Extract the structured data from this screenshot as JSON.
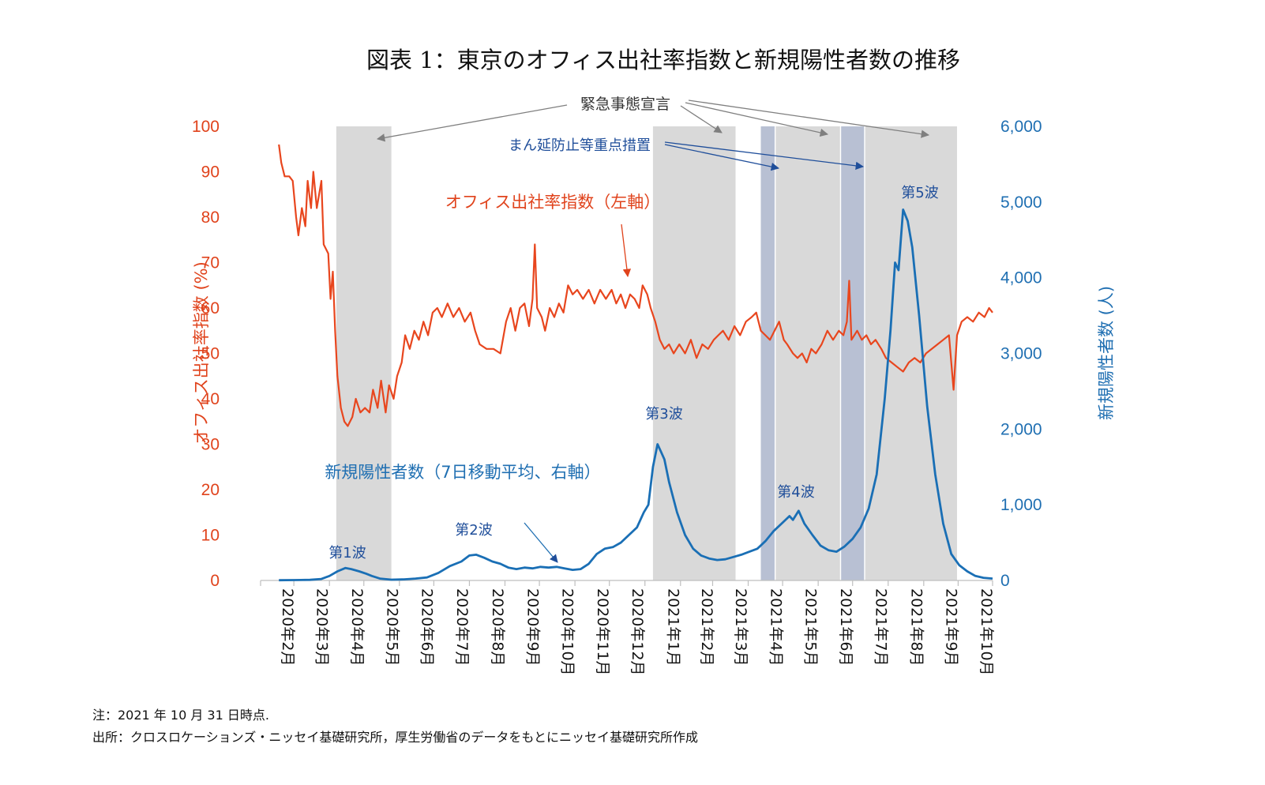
{
  "title": "図表 1：東京のオフィス出社率指数と新規陽性者数の推移",
  "notes": {
    "note": "注：2021 年 10 月 31 日時点.",
    "source": "出所：クロスロケーションズ・ニッセイ基礎研究所，厚生労働省のデータをもとにニッセイ基礎研究所作成"
  },
  "annotations": {
    "emergency": "緊急事態宣言",
    "priority": "まん延防止等重点措置",
    "office_series": "オフィス出社率指数（左軸）",
    "cases_series": "新規陽性者数（7日移動平均、右軸）",
    "waves": [
      "第1波",
      "第2波",
      "第3波",
      "第4波",
      "第5波"
    ]
  },
  "colors": {
    "office": "#e8461e",
    "cases": "#1a6fb5",
    "emergency_band": "#d9d9d9",
    "priority_band": "#b8c0d3"
  },
  "chart_data": {
    "type": "line",
    "x_ticks": [
      "2020年2月",
      "2020年3月",
      "2020年4月",
      "2020年5月",
      "2020年6月",
      "2020年7月",
      "2020年8月",
      "2020年9月",
      "2020年10月",
      "2020年11月",
      "2020年12月",
      "2021年1月",
      "2021年2月",
      "2021年3月",
      "2021年4月",
      "2021年5月",
      "2021年6月",
      "2021年7月",
      "2021年8月",
      "2021年9月",
      "2021年10月"
    ],
    "x_range": [
      "2020-02-01",
      "2021-10-31"
    ],
    "left_axis": {
      "label": "オフィス出社率指数 (%)",
      "ylim": [
        0,
        100
      ],
      "ticks": [
        0,
        10,
        20,
        30,
        40,
        50,
        60,
        70,
        80,
        90,
        100
      ]
    },
    "right_axis": {
      "label": "新規陽性者数 (人)",
      "ylim": [
        0,
        6000
      ],
      "ticks": [
        "0",
        "1,000",
        "2,000",
        "3,000",
        "4,000",
        "5,000",
        "6,000"
      ]
    },
    "emergency_periods": [
      [
        "2020-04-07",
        "2020-05-25"
      ],
      [
        "2021-01-08",
        "2021-03-21"
      ],
      [
        "2021-04-25",
        "2021-06-20"
      ],
      [
        "2021-07-12",
        "2021-09-30"
      ]
    ],
    "priority_periods": [
      [
        "2021-04-12",
        "2021-04-24"
      ],
      [
        "2021-06-21",
        "2021-07-11"
      ]
    ],
    "series": [
      {
        "name": "オフィス出社率指数（左軸）",
        "axis": "left",
        "points": [
          [
            "2020-02-17",
            96
          ],
          [
            "2020-02-19",
            92
          ],
          [
            "2020-02-22",
            89
          ],
          [
            "2020-02-26",
            89
          ],
          [
            "2020-02-29",
            88
          ],
          [
            "2020-03-03",
            80
          ],
          [
            "2020-03-05",
            76
          ],
          [
            "2020-03-08",
            82
          ],
          [
            "2020-03-11",
            78
          ],
          [
            "2020-03-13",
            88
          ],
          [
            "2020-03-16",
            82
          ],
          [
            "2020-03-18",
            90
          ],
          [
            "2020-03-21",
            82
          ],
          [
            "2020-03-25",
            88
          ],
          [
            "2020-03-27",
            74
          ],
          [
            "2020-03-31",
            72
          ],
          [
            "2020-04-02",
            62
          ],
          [
            "2020-04-04",
            68
          ],
          [
            "2020-04-06",
            55
          ],
          [
            "2020-04-08",
            45
          ],
          [
            "2020-04-11",
            38
          ],
          [
            "2020-04-14",
            35
          ],
          [
            "2020-04-17",
            34
          ],
          [
            "2020-04-21",
            36
          ],
          [
            "2020-04-24",
            40
          ],
          [
            "2020-04-28",
            37
          ],
          [
            "2020-05-02",
            38
          ],
          [
            "2020-05-06",
            37
          ],
          [
            "2020-05-09",
            42
          ],
          [
            "2020-05-13",
            38
          ],
          [
            "2020-05-16",
            44
          ],
          [
            "2020-05-20",
            37
          ],
          [
            "2020-05-23",
            43
          ],
          [
            "2020-05-27",
            40
          ],
          [
            "2020-05-30",
            45
          ],
          [
            "2020-06-03",
            48
          ],
          [
            "2020-06-06",
            54
          ],
          [
            "2020-06-10",
            51
          ],
          [
            "2020-06-14",
            55
          ],
          [
            "2020-06-18",
            53
          ],
          [
            "2020-06-22",
            57
          ],
          [
            "2020-06-26",
            54
          ],
          [
            "2020-06-30",
            59
          ],
          [
            "2020-07-04",
            60
          ],
          [
            "2020-07-08",
            58
          ],
          [
            "2020-07-13",
            61
          ],
          [
            "2020-07-18",
            58
          ],
          [
            "2020-07-23",
            60
          ],
          [
            "2020-07-28",
            57
          ],
          [
            "2020-08-02",
            59
          ],
          [
            "2020-08-06",
            55
          ],
          [
            "2020-08-10",
            52
          ],
          [
            "2020-08-16",
            51
          ],
          [
            "2020-08-22",
            51
          ],
          [
            "2020-08-28",
            50
          ],
          [
            "2020-09-02",
            57
          ],
          [
            "2020-09-06",
            60
          ],
          [
            "2020-09-10",
            55
          ],
          [
            "2020-09-14",
            60
          ],
          [
            "2020-09-18",
            61
          ],
          [
            "2020-09-22",
            56
          ],
          [
            "2020-09-25",
            62
          ],
          [
            "2020-09-27",
            74
          ],
          [
            "2020-09-29",
            60
          ],
          [
            "2020-10-03",
            58
          ],
          [
            "2020-10-06",
            55
          ],
          [
            "2020-10-10",
            60
          ],
          [
            "2020-10-14",
            58
          ],
          [
            "2020-10-18",
            61
          ],
          [
            "2020-10-22",
            59
          ],
          [
            "2020-10-26",
            65
          ],
          [
            "2020-10-30",
            63
          ],
          [
            "2020-11-03",
            64
          ],
          [
            "2020-11-08",
            62
          ],
          [
            "2020-11-13",
            64
          ],
          [
            "2020-11-18",
            61
          ],
          [
            "2020-11-23",
            64
          ],
          [
            "2020-11-28",
            62
          ],
          [
            "2020-12-03",
            64
          ],
          [
            "2020-12-07",
            61
          ],
          [
            "2020-12-11",
            63
          ],
          [
            "2020-12-15",
            60
          ],
          [
            "2020-12-19",
            63
          ],
          [
            "2020-12-23",
            62
          ],
          [
            "2020-12-27",
            60
          ],
          [
            "2020-12-30",
            65
          ],
          [
            "2021-01-03",
            63
          ],
          [
            "2021-01-06",
            60
          ],
          [
            "2021-01-10",
            57
          ],
          [
            "2021-01-14",
            53
          ],
          [
            "2021-01-18",
            51
          ],
          [
            "2021-01-22",
            52
          ],
          [
            "2021-01-26",
            50
          ],
          [
            "2021-01-31",
            52
          ],
          [
            "2021-02-05",
            50
          ],
          [
            "2021-02-10",
            53
          ],
          [
            "2021-02-15",
            49
          ],
          [
            "2021-02-20",
            52
          ],
          [
            "2021-02-25",
            51
          ],
          [
            "2021-03-02",
            53
          ],
          [
            "2021-03-06",
            54
          ],
          [
            "2021-03-10",
            55
          ],
          [
            "2021-03-15",
            53
          ],
          [
            "2021-03-20",
            56
          ],
          [
            "2021-03-25",
            54
          ],
          [
            "2021-03-30",
            57
          ],
          [
            "2021-04-04",
            58
          ],
          [
            "2021-04-08",
            59
          ],
          [
            "2021-04-12",
            55
          ],
          [
            "2021-04-16",
            54
          ],
          [
            "2021-04-20",
            53
          ],
          [
            "2021-04-24",
            55
          ],
          [
            "2021-04-28",
            57
          ],
          [
            "2021-05-02",
            53
          ],
          [
            "2021-05-05",
            52
          ],
          [
            "2021-05-10",
            50
          ],
          [
            "2021-05-14",
            49
          ],
          [
            "2021-05-18",
            50
          ],
          [
            "2021-05-22",
            48
          ],
          [
            "2021-05-26",
            51
          ],
          [
            "2021-05-30",
            50
          ],
          [
            "2021-06-04",
            52
          ],
          [
            "2021-06-09",
            55
          ],
          [
            "2021-06-14",
            53
          ],
          [
            "2021-06-19",
            55
          ],
          [
            "2021-06-23",
            54
          ],
          [
            "2021-06-26",
            57
          ],
          [
            "2021-06-28",
            66
          ],
          [
            "2021-06-30",
            53
          ],
          [
            "2021-07-05",
            55
          ],
          [
            "2021-07-09",
            53
          ],
          [
            "2021-07-13",
            54
          ],
          [
            "2021-07-17",
            52
          ],
          [
            "2021-07-21",
            53
          ],
          [
            "2021-07-26",
            51
          ],
          [
            "2021-07-30",
            49
          ],
          [
            "2021-08-04",
            48
          ],
          [
            "2021-08-09",
            47
          ],
          [
            "2021-08-14",
            46
          ],
          [
            "2021-08-19",
            48
          ],
          [
            "2021-08-24",
            49
          ],
          [
            "2021-08-29",
            48
          ],
          [
            "2021-09-03",
            50
          ],
          [
            "2021-09-08",
            51
          ],
          [
            "2021-09-13",
            52
          ],
          [
            "2021-09-18",
            53
          ],
          [
            "2021-09-23",
            54
          ],
          [
            "2021-09-27",
            42
          ],
          [
            "2021-09-30",
            54
          ],
          [
            "2021-10-04",
            57
          ],
          [
            "2021-10-09",
            58
          ],
          [
            "2021-10-14",
            57
          ],
          [
            "2021-10-19",
            59
          ],
          [
            "2021-10-24",
            58
          ],
          [
            "2021-10-28",
            60
          ],
          [
            "2021-10-31",
            59
          ]
        ]
      },
      {
        "name": "新規陽性者数（7日移動平均、右軸）",
        "axis": "right",
        "points": [
          [
            "2020-02-17",
            3
          ],
          [
            "2020-03-01",
            5
          ],
          [
            "2020-03-15",
            8
          ],
          [
            "2020-03-25",
            20
          ],
          [
            "2020-04-01",
            60
          ],
          [
            "2020-04-08",
            120
          ],
          [
            "2020-04-15",
            165
          ],
          [
            "2020-04-20",
            150
          ],
          [
            "2020-04-27",
            120
          ],
          [
            "2020-05-03",
            90
          ],
          [
            "2020-05-08",
            60
          ],
          [
            "2020-05-15",
            25
          ],
          [
            "2020-05-25",
            10
          ],
          [
            "2020-06-05",
            15
          ],
          [
            "2020-06-15",
            25
          ],
          [
            "2020-06-25",
            40
          ],
          [
            "2020-07-05",
            100
          ],
          [
            "2020-07-15",
            190
          ],
          [
            "2020-07-25",
            250
          ],
          [
            "2020-08-01",
            330
          ],
          [
            "2020-08-07",
            340
          ],
          [
            "2020-08-14",
            300
          ],
          [
            "2020-08-21",
            250
          ],
          [
            "2020-08-28",
            220
          ],
          [
            "2020-09-04",
            170
          ],
          [
            "2020-09-11",
            150
          ],
          [
            "2020-09-18",
            170
          ],
          [
            "2020-09-25",
            160
          ],
          [
            "2020-10-02",
            180
          ],
          [
            "2020-10-09",
            170
          ],
          [
            "2020-10-16",
            180
          ],
          [
            "2020-10-23",
            160
          ],
          [
            "2020-10-30",
            140
          ],
          [
            "2020-11-06",
            150
          ],
          [
            "2020-11-13",
            220
          ],
          [
            "2020-11-20",
            350
          ],
          [
            "2020-11-27",
            420
          ],
          [
            "2020-12-04",
            440
          ],
          [
            "2020-12-11",
            500
          ],
          [
            "2020-12-18",
            600
          ],
          [
            "2020-12-25",
            700
          ],
          [
            "2020-12-31",
            900
          ],
          [
            "2021-01-04",
            1000
          ],
          [
            "2021-01-08",
            1500
          ],
          [
            "2021-01-12",
            1800
          ],
          [
            "2021-01-15",
            1700
          ],
          [
            "2021-01-18",
            1600
          ],
          [
            "2021-01-22",
            1300
          ],
          [
            "2021-01-29",
            900
          ],
          [
            "2021-02-05",
            600
          ],
          [
            "2021-02-12",
            420
          ],
          [
            "2021-02-19",
            330
          ],
          [
            "2021-02-26",
            290
          ],
          [
            "2021-03-05",
            270
          ],
          [
            "2021-03-12",
            280
          ],
          [
            "2021-03-19",
            310
          ],
          [
            "2021-03-26",
            340
          ],
          [
            "2021-04-02",
            380
          ],
          [
            "2021-04-09",
            420
          ],
          [
            "2021-04-16",
            520
          ],
          [
            "2021-04-23",
            650
          ],
          [
            "2021-04-30",
            750
          ],
          [
            "2021-05-07",
            850
          ],
          [
            "2021-05-10",
            800
          ],
          [
            "2021-05-15",
            920
          ],
          [
            "2021-05-20",
            750
          ],
          [
            "2021-05-27",
            600
          ],
          [
            "2021-06-03",
            460
          ],
          [
            "2021-06-10",
            400
          ],
          [
            "2021-06-17",
            380
          ],
          [
            "2021-06-24",
            450
          ],
          [
            "2021-07-01",
            550
          ],
          [
            "2021-07-08",
            700
          ],
          [
            "2021-07-15",
            950
          ],
          [
            "2021-07-22",
            1400
          ],
          [
            "2021-07-29",
            2400
          ],
          [
            "2021-08-03",
            3300
          ],
          [
            "2021-08-07",
            4200
          ],
          [
            "2021-08-10",
            4100
          ],
          [
            "2021-08-14",
            4900
          ],
          [
            "2021-08-18",
            4750
          ],
          [
            "2021-08-22",
            4400
          ],
          [
            "2021-08-28",
            3500
          ],
          [
            "2021-09-04",
            2300
          ],
          [
            "2021-09-11",
            1400
          ],
          [
            "2021-09-18",
            750
          ],
          [
            "2021-09-25",
            350
          ],
          [
            "2021-10-02",
            200
          ],
          [
            "2021-10-09",
            120
          ],
          [
            "2021-10-16",
            60
          ],
          [
            "2021-10-23",
            35
          ],
          [
            "2021-10-31",
            25
          ]
        ]
      }
    ]
  }
}
